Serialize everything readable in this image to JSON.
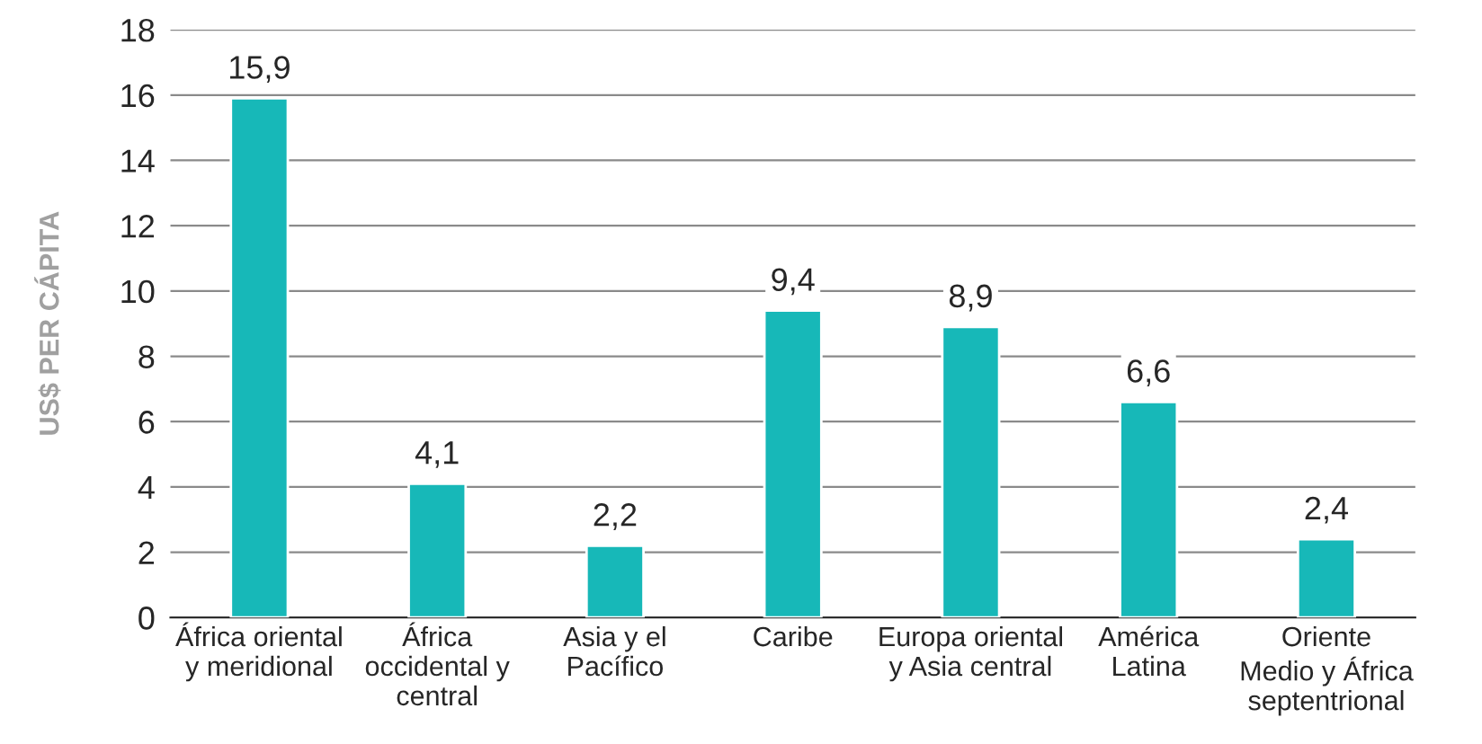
{
  "chart_data": {
    "type": "bar",
    "ylabel": "US$ PER CÁPITA",
    "categories": [
      "África oriental\ny meridional",
      "África\noccidental y\ncentral",
      "Asia y el\nPacífico",
      "Caribe",
      "Europa oriental\ny Asia central",
      "América\nLatina",
      "Oriente\nMedio y África\nseptentrional"
    ],
    "values": [
      15.9,
      4.1,
      2.2,
      9.4,
      8.9,
      6.6,
      2.4
    ],
    "value_labels": [
      "15,9",
      "4,1",
      "2,2",
      "9,4",
      "8,9",
      "6,6",
      "2,4"
    ],
    "color": "#17b8b8",
    "ylim": [
      0,
      18
    ],
    "yticks": [
      0,
      2,
      4,
      6,
      8,
      10,
      12,
      14,
      16,
      18
    ],
    "grid": "y"
  }
}
